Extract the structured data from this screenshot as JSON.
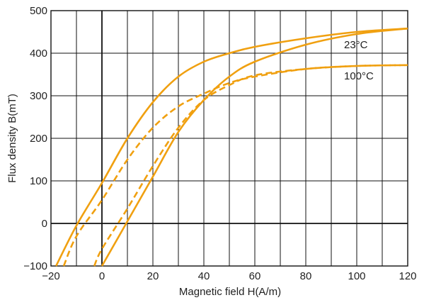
{
  "chart_data": {
    "type": "line",
    "title": "",
    "xlabel": "Magnetic field H(A/m)",
    "ylabel": "Flux density B(mT)",
    "xlim": [
      -20,
      120
    ],
    "ylim": [
      -100,
      500
    ],
    "xticks": [
      -20,
      0,
      20,
      40,
      60,
      80,
      100,
      120
    ],
    "yticks": [
      -100,
      0,
      100,
      200,
      300,
      400,
      500
    ],
    "x_gridlines": [
      -20,
      -10,
      0,
      10,
      20,
      30,
      40,
      50,
      60,
      70,
      80,
      90,
      100,
      110,
      120
    ],
    "y_gridlines": [
      -100,
      0,
      100,
      200,
      300,
      400,
      500
    ],
    "grid": true,
    "line_color": "#F0A010",
    "series": [
      {
        "name": "23°C",
        "style": "solid",
        "branches": [
          {
            "x": [
              -18,
              -10,
              0,
              10,
              20,
              30,
              40,
              50,
              60,
              80,
              100,
              120
            ],
            "y": [
              -100,
              -5,
              95,
              200,
              285,
              345,
              380,
              400,
              415,
              435,
              450,
              458
            ]
          },
          {
            "x": [
              0,
              10,
              20,
              30,
              40,
              50,
              60,
              80,
              100,
              120
            ],
            "y": [
              -100,
              5,
              110,
              215,
              290,
              345,
              380,
              420,
              445,
              458
            ]
          }
        ]
      },
      {
        "name": "100°C",
        "style": "dashed",
        "branches": [
          {
            "x": [
              -15,
              -10,
              0,
              10,
              20,
              30,
              40,
              50,
              60,
              80,
              100,
              120
            ],
            "y": [
              -100,
              -30,
              55,
              150,
              225,
              275,
              305,
              330,
              345,
              363,
              370,
              372
            ]
          },
          {
            "x": [
              -3,
              0,
              10,
              20,
              30,
              40,
              50,
              60,
              80,
              100,
              120
            ],
            "y": [
              -100,
              -60,
              35,
              135,
              225,
              290,
              325,
              348,
              363,
              370,
              372
            ]
          }
        ]
      }
    ]
  }
}
